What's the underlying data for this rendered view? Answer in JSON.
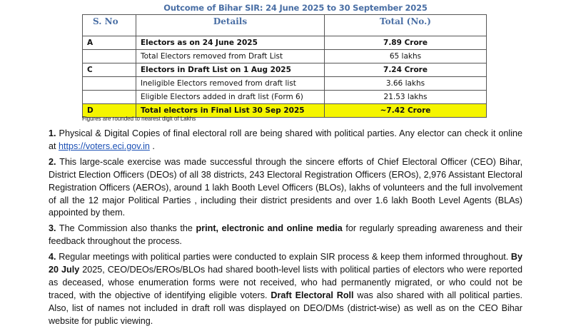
{
  "title": "Outcome of Bihar SIR: 24 June 2025 to 30 September 2025",
  "table": {
    "headers": [
      "S. No",
      "Details",
      "Total (No.)"
    ],
    "rows": [
      {
        "sno": "A",
        "details": "Electors as on 24 June 2025",
        "total": "7.89 Crore",
        "bold": true
      },
      {
        "sno": "",
        "details": "Total Electors removed from Draft List",
        "total": "65 lakhs",
        "bold": false
      },
      {
        "sno": "C",
        "details": "Electors in Draft List on 1 Aug 2025",
        "total": "7.24 Crore",
        "bold": true
      },
      {
        "sno": "",
        "details": "Ineligible Electors removed from draft list",
        "total": "3.66 lakhs",
        "bold": false
      },
      {
        "sno": "",
        "details": "Eligible Electors added in draft list (Form 6)",
        "total": "21.53 lakhs",
        "bold": false
      },
      {
        "sno": "D",
        "details": "Total electors in Final List 30 Sep 2025",
        "total": "~7.42 Crore",
        "bold": true,
        "highlight": "#f5f500"
      }
    ]
  },
  "footnote": "Figures are rounded to nearest digit of Lakhs",
  "paragraphs": {
    "p1": {
      "num": "1.",
      "a": " Physical & Digital Copies of final electoral roll are being shared with political parties. Any elector can check it online at ",
      "link": "https://voters.eci.gov.in",
      "b": " ."
    },
    "p2": {
      "num": "2.",
      "a": " This large-scale exercise was made successful through the sincere efforts of Chief Electoral Officer (CEO) Bihar, District Election Officers (DEOs) of all 38 districts, 243 Electoral Registration Officers (EROs), 2,976 Assistant Electoral Registration Officers (AEROs), around 1 lakh Booth Level Officers (BLOs), lakhs of volunteers and the full involvement of all the 12 major Political Parties , including their district presidents and over 1.6 lakh Booth Level Agents (BLAs) appointed by them."
    },
    "p3": {
      "num": "3.",
      "a": " The Commission also thanks the ",
      "bold": "print, electronic and online media",
      "b": " for regularly spreading awareness and their feedback throughout the process."
    },
    "p4": {
      "num": "4.",
      "a": " Regular meetings with political parties were conducted to explain SIR process & keep them informed throughout. ",
      "bold1": "By 20 July",
      "b": " 2025, CEO/DEOs/EROs/BLOs had shared booth-level lists with political parties of electors who were reported as deceased, whose enumeration forms were not received, who had permanently migrated, or who could not be traced, with the objective of identifying eligible voters. ",
      "bold2": "Draft Electoral Roll",
      "c": " was also shared with all political parties. Also, list of names not included in draft roll was displayed on DEO/DMs (district-wise) as well as on the CEO Bihar website for public viewing."
    }
  }
}
